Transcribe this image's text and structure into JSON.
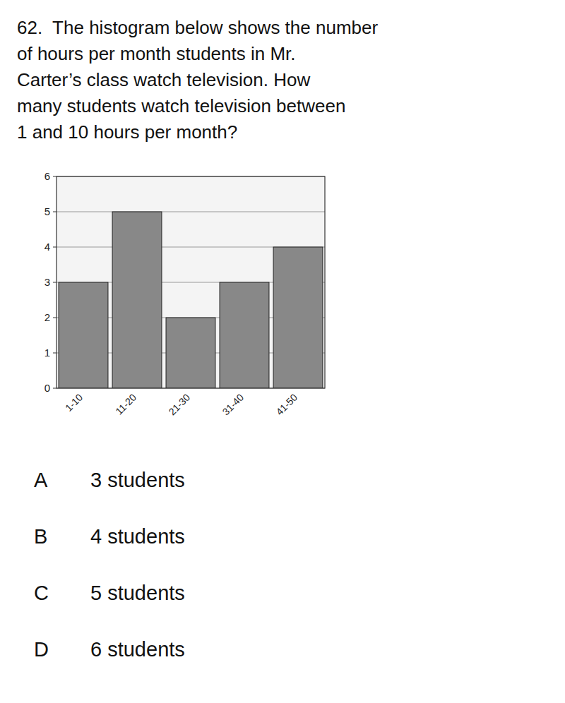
{
  "chart_data": {
    "type": "bar",
    "title": "62.  The histogram below shows the number\nof hours per month students in Mr.\nCarter’s class watch television. How\nmany students watch television between\n1 and 10 hours per month?",
    "categories": [
      "1-10",
      "11-20",
      "21-30",
      "31-40",
      "41-50"
    ],
    "values": [
      3,
      5,
      2,
      3,
      4
    ],
    "color": "#888888",
    "ylim": [
      0,
      6
    ],
    "yticks": [
      0,
      1,
      2,
      3,
      4,
      5,
      6
    ],
    "grid": true,
    "annotations": [
      "A",
      "3 students",
      "B",
      "4 students",
      "C",
      "5 students",
      "D",
      "6 students"
    ]
  }
}
